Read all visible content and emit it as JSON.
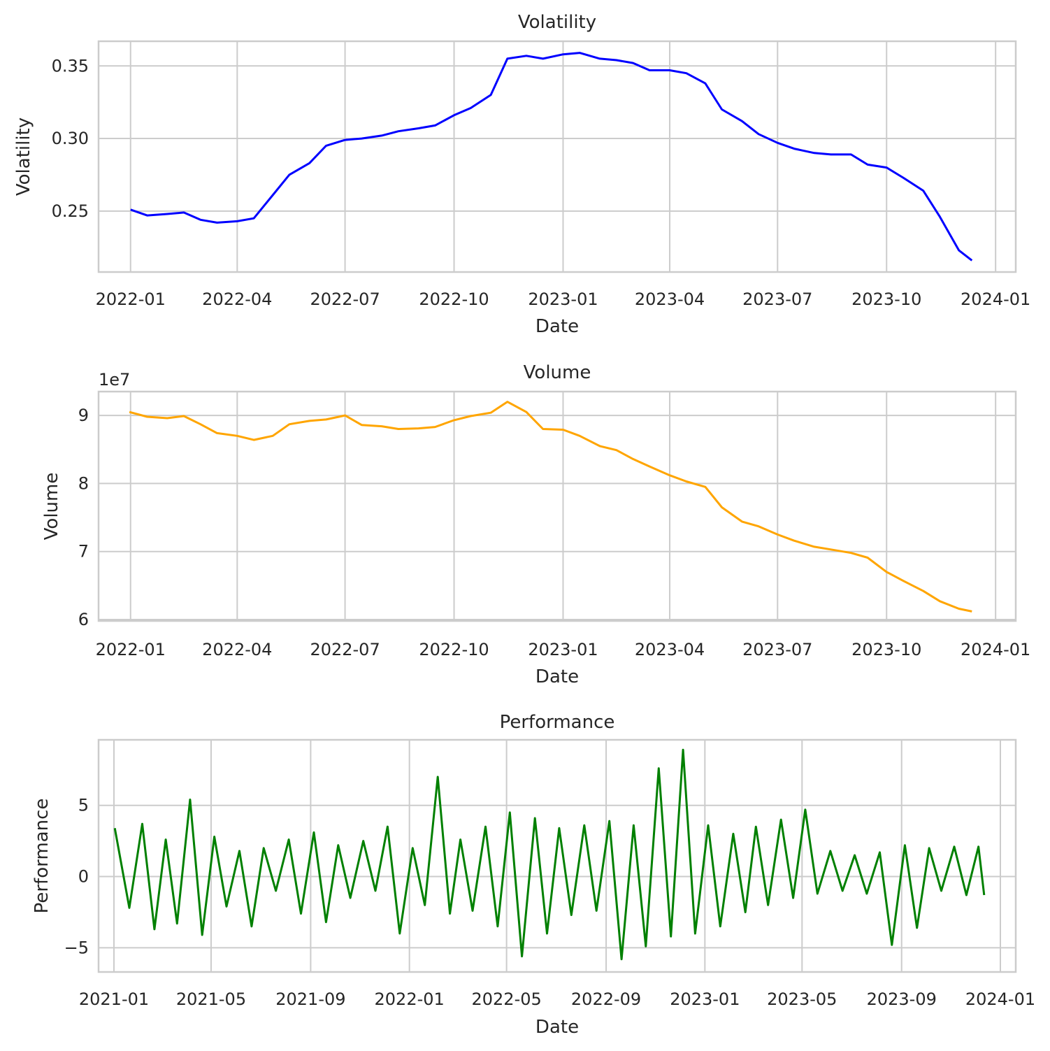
{
  "chart_data": [
    {
      "type": "line",
      "title": "Volatility",
      "xlabel": "Date",
      "ylabel": "Volatility",
      "x_ticks": [
        "2022-01",
        "2022-04",
        "2022-07",
        "2022-10",
        "2023-01",
        "2023-04",
        "2023-07",
        "2023-10",
        "2024-01"
      ],
      "y_ticks": [
        "0.25",
        "0.30",
        "0.35"
      ],
      "xlim": [
        "2021-12-05",
        "2024-01-18"
      ],
      "ylim": [
        0.208,
        0.367
      ],
      "grid": true,
      "series": [
        {
          "color": "#0000ff",
          "x": [
            "2022-01-01",
            "2022-01-15",
            "2022-02-01",
            "2022-02-15",
            "2022-03-01",
            "2022-03-15",
            "2022-04-01",
            "2022-04-15",
            "2022-05-01",
            "2022-05-15",
            "2022-06-01",
            "2022-06-15",
            "2022-07-01",
            "2022-07-15",
            "2022-08-01",
            "2022-08-15",
            "2022-09-01",
            "2022-09-15",
            "2022-10-01",
            "2022-10-15",
            "2022-11-01",
            "2022-11-15",
            "2022-12-01",
            "2022-12-15",
            "2023-01-01",
            "2023-01-15",
            "2023-02-01",
            "2023-02-15",
            "2023-03-01",
            "2023-03-15",
            "2023-04-01",
            "2023-04-15",
            "2023-05-01",
            "2023-05-15",
            "2023-06-01",
            "2023-06-15",
            "2023-07-01",
            "2023-07-15",
            "2023-08-01",
            "2023-08-15",
            "2023-09-01",
            "2023-09-15",
            "2023-10-01",
            "2023-10-15",
            "2023-11-01",
            "2023-11-15",
            "2023-12-01",
            "2023-12-12"
          ],
          "y": [
            0.251,
            0.247,
            0.248,
            0.249,
            0.244,
            0.242,
            0.243,
            0.245,
            0.261,
            0.275,
            0.283,
            0.295,
            0.299,
            0.3,
            0.302,
            0.305,
            0.307,
            0.309,
            0.316,
            0.321,
            0.33,
            0.355,
            0.357,
            0.355,
            0.358,
            0.359,
            0.355,
            0.354,
            0.352,
            0.347,
            0.347,
            0.345,
            0.338,
            0.32,
            0.312,
            0.303,
            0.297,
            0.293,
            0.29,
            0.289,
            0.289,
            0.282,
            0.28,
            0.273,
            0.264,
            0.246,
            0.223,
            0.216
          ]
        }
      ]
    },
    {
      "type": "line",
      "title": "Volume",
      "xlabel": "Date",
      "ylabel": "Volume",
      "y_offset_label": "1e7",
      "x_ticks": [
        "2022-01",
        "2022-04",
        "2022-07",
        "2022-10",
        "2023-01",
        "2023-04",
        "2023-07",
        "2023-10",
        "2024-01"
      ],
      "y_ticks": [
        "6",
        "7",
        "8",
        "9"
      ],
      "xlim": [
        "2021-12-05",
        "2024-01-18"
      ],
      "ylim": [
        5.98,
        9.35
      ],
      "grid": true,
      "series": [
        {
          "color": "#ffa500",
          "x": [
            "2021-12-31",
            "2022-01-15",
            "2022-02-01",
            "2022-02-15",
            "2022-03-01",
            "2022-03-15",
            "2022-04-01",
            "2022-04-15",
            "2022-05-01",
            "2022-05-15",
            "2022-06-01",
            "2022-06-15",
            "2022-07-01",
            "2022-07-15",
            "2022-08-01",
            "2022-08-15",
            "2022-09-01",
            "2022-09-15",
            "2022-10-01",
            "2022-10-15",
            "2022-11-01",
            "2022-11-15",
            "2022-12-01",
            "2022-12-15",
            "2023-01-01",
            "2023-01-15",
            "2023-02-01",
            "2023-02-15",
            "2023-03-01",
            "2023-03-15",
            "2023-04-01",
            "2023-04-15",
            "2023-05-01",
            "2023-05-15",
            "2023-06-01",
            "2023-06-15",
            "2023-07-01",
            "2023-07-15",
            "2023-08-01",
            "2023-08-15",
            "2023-09-01",
            "2023-09-15",
            "2023-10-01",
            "2023-10-15",
            "2023-11-01",
            "2023-11-15",
            "2023-12-01",
            "2023-12-12"
          ],
          "y": [
            9.05,
            8.98,
            8.96,
            8.99,
            8.87,
            8.74,
            8.7,
            8.64,
            8.7,
            8.87,
            8.92,
            8.94,
            9.0,
            8.86,
            8.84,
            8.8,
            8.81,
            8.83,
            8.93,
            8.99,
            9.04,
            9.2,
            9.05,
            8.8,
            8.79,
            8.7,
            8.55,
            8.49,
            8.36,
            8.25,
            8.12,
            8.03,
            7.95,
            7.65,
            7.44,
            7.37,
            7.25,
            7.16,
            7.07,
            7.03,
            6.98,
            6.91,
            6.7,
            6.57,
            6.42,
            6.27,
            6.16,
            6.12
          ]
        }
      ]
    },
    {
      "type": "line",
      "title": "Performance",
      "xlabel": "Date",
      "ylabel": "Performance",
      "x_ticks": [
        "2021-01",
        "2021-05",
        "2021-09",
        "2022-01",
        "2022-05",
        "2022-09",
        "2023-01",
        "2023-05",
        "2023-09",
        "2024-01"
      ],
      "y_ticks": [
        "−5",
        "0",
        "5"
      ],
      "xlim": [
        "2020-12-13",
        "2024-01-20"
      ],
      "ylim": [
        -6.7,
        9.6
      ],
      "grid": true,
      "series": [
        {
          "color": "#008000",
          "x": [
            "2021-01-02",
            "2021-01-20",
            "2021-02-05",
            "2021-02-20",
            "2021-03-06",
            "2021-03-20",
            "2021-04-05",
            "2021-04-20",
            "2021-05-05",
            "2021-05-20",
            "2021-06-05",
            "2021-06-20",
            "2021-07-05",
            "2021-07-20",
            "2021-08-05",
            "2021-08-20",
            "2021-09-05",
            "2021-09-20",
            "2021-10-05",
            "2021-10-20",
            "2021-11-05",
            "2021-11-20",
            "2021-12-05",
            "2021-12-20",
            "2022-01-05",
            "2022-01-20",
            "2022-02-05",
            "2022-02-20",
            "2022-03-05",
            "2022-03-20",
            "2022-04-05",
            "2022-04-20",
            "2022-05-05",
            "2022-05-20",
            "2022-06-05",
            "2022-06-20",
            "2022-07-05",
            "2022-07-20",
            "2022-08-05",
            "2022-08-20",
            "2022-09-05",
            "2022-09-20",
            "2022-10-05",
            "2022-10-20",
            "2022-11-05",
            "2022-11-20",
            "2022-12-05",
            "2022-12-20",
            "2023-01-05",
            "2023-01-20",
            "2023-02-05",
            "2023-02-20",
            "2023-03-05",
            "2023-03-20",
            "2023-04-05",
            "2023-04-20",
            "2023-05-05",
            "2023-05-20",
            "2023-06-05",
            "2023-06-20",
            "2023-07-05",
            "2023-07-20",
            "2023-08-05",
            "2023-08-20",
            "2023-09-05",
            "2023-09-20",
            "2023-10-05",
            "2023-10-20",
            "2023-11-05",
            "2023-11-20",
            "2023-12-05",
            "2023-12-12"
          ],
          "y": [
            3.4,
            -2.2,
            3.7,
            -3.7,
            2.6,
            -3.3,
            5.4,
            -4.1,
            2.8,
            -2.1,
            1.8,
            -3.5,
            2.0,
            -1.0,
            2.6,
            -2.6,
            3.1,
            -3.2,
            2.2,
            -1.5,
            2.5,
            -1.0,
            3.5,
            -4.0,
            2.0,
            -2.0,
            7.0,
            -2.6,
            2.6,
            -2.4,
            3.5,
            -3.5,
            4.5,
            -5.6,
            4.1,
            -4.0,
            3.4,
            -2.7,
            3.6,
            -2.4,
            3.9,
            -5.8,
            3.6,
            -4.9,
            7.6,
            -4.2,
            8.9,
            -4.0,
            3.6,
            -3.5,
            3.0,
            -2.5,
            3.5,
            -2.0,
            4.0,
            -1.5,
            4.7,
            -1.2,
            1.8,
            -1.0,
            1.5,
            -1.2,
            1.7,
            -4.8,
            2.2,
            -3.6,
            2.0,
            -1.0,
            2.1,
            -1.3,
            2.1,
            -1.3
          ]
        }
      ]
    }
  ]
}
